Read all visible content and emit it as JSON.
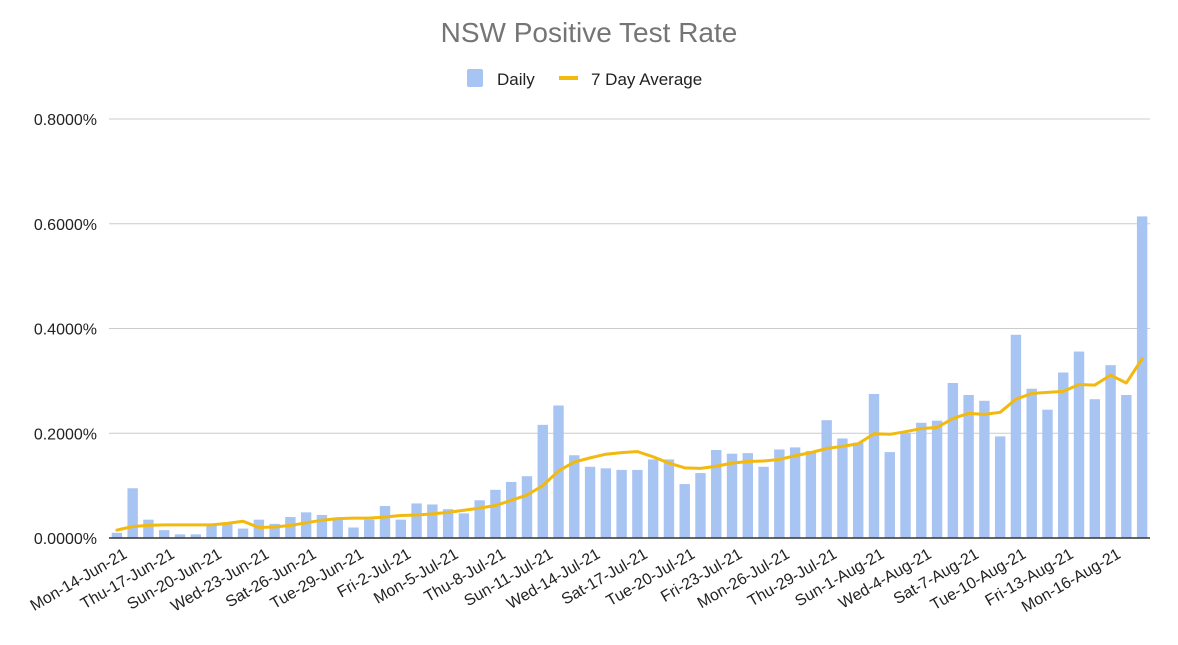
{
  "chart_data": {
    "type": "bar",
    "title": "NSW Positive Test Rate",
    "legend_position": "top-center",
    "grid": true,
    "ylim": [
      0,
      0.8
    ],
    "yticks": [
      0,
      0.2,
      0.4,
      0.6,
      0.8
    ],
    "ytick_labels": [
      "0.0000%",
      "0.2000%",
      "0.4000%",
      "0.6000%",
      "0.8000%"
    ],
    "xtick_labels": [
      "Mon-14-Jun-21",
      "Thu-17-Jun-21",
      "Sun-20-Jun-21",
      "Wed-23-Jun-21",
      "Sat-26-Jun-21",
      "Tue-29-Jun-21",
      "Fri-2-Jul-21",
      "Mon-5-Jul-21",
      "Thu-8-Jul-21",
      "Sun-11-Jul-21",
      "Wed-14-Jul-21",
      "Sat-17-Jul-21",
      "Tue-20-Jul-21",
      "Fri-23-Jul-21",
      "Mon-26-Jul-21",
      "Thu-29-Jul-21",
      "Sun-1-Aug-21",
      "Wed-4-Aug-21",
      "Sat-7-Aug-21",
      "Tue-10-Aug-21",
      "Fri-13-Aug-21",
      "Mon-16-Aug-21"
    ],
    "series": [
      {
        "name": "Daily",
        "type": "bar",
        "color": "#a8c4f2",
        "values": [
          0.01,
          0.095,
          0.035,
          0.015,
          0.007,
          0.007,
          0.025,
          0.03,
          0.018,
          0.035,
          0.027,
          0.04,
          0.049,
          0.044,
          0.039,
          0.02,
          0.035,
          0.061,
          0.035,
          0.066,
          0.064,
          0.055,
          0.047,
          0.072,
          0.092,
          0.107,
          0.118,
          0.216,
          0.253,
          0.158,
          0.136,
          0.133,
          0.13,
          0.13,
          0.15,
          0.15,
          0.103,
          0.124,
          0.168,
          0.161,
          0.162,
          0.136,
          0.169,
          0.173,
          0.166,
          0.225,
          0.19,
          0.182,
          0.275,
          0.164,
          0.2,
          0.22,
          0.224,
          0.296,
          0.273,
          0.262,
          0.194,
          0.388,
          0.285,
          0.245,
          0.316,
          0.356,
          0.265,
          0.33,
          0.273,
          0.614
        ]
      },
      {
        "name": "7 Day Average",
        "type": "line",
        "color": "#f2b90f",
        "values": [
          0.015,
          0.022,
          0.024,
          0.025,
          0.025,
          0.025,
          0.025,
          0.028,
          0.032,
          0.02,
          0.021,
          0.024,
          0.029,
          0.034,
          0.037,
          0.038,
          0.038,
          0.04,
          0.043,
          0.044,
          0.046,
          0.049,
          0.053,
          0.057,
          0.062,
          0.072,
          0.082,
          0.1,
          0.128,
          0.145,
          0.153,
          0.16,
          0.163,
          0.165,
          0.155,
          0.143,
          0.134,
          0.133,
          0.137,
          0.143,
          0.146,
          0.147,
          0.15,
          0.157,
          0.163,
          0.171,
          0.175,
          0.18,
          0.199,
          0.198,
          0.203,
          0.209,
          0.211,
          0.228,
          0.238,
          0.236,
          0.24,
          0.265,
          0.276,
          0.278,
          0.28,
          0.293,
          0.292,
          0.311,
          0.296,
          0.342
        ]
      }
    ]
  }
}
